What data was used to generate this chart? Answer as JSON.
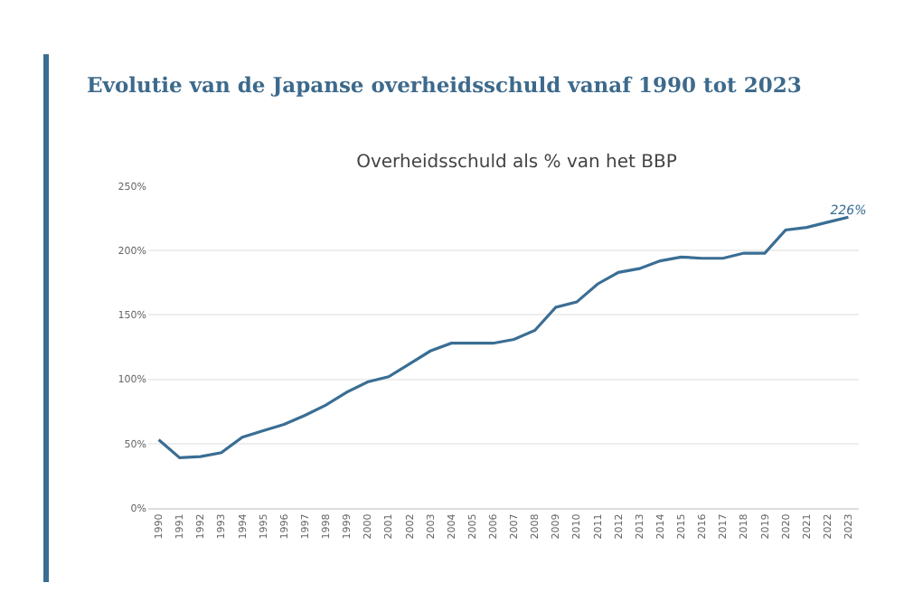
{
  "chart_data": {
    "type": "line",
    "title": "Evolutie van de Japanse overheidsschuld vanaf 1990 tot 2023",
    "subtitle": "Overheidsschuld als % van het BBP",
    "categories": [
      "1990",
      "1991",
      "1992",
      "1993",
      "1994",
      "1995",
      "1996",
      "1997",
      "1998",
      "1999",
      "2000",
      "2001",
      "2002",
      "2003",
      "2004",
      "2005",
      "2006",
      "2007",
      "2008",
      "2009",
      "2010",
      "2011",
      "2012",
      "2013",
      "2014",
      "2015",
      "2016",
      "2017",
      "2018",
      "2019",
      "2020",
      "2021",
      "2022",
      "2023"
    ],
    "series": [
      {
        "color": "#3a6e94",
        "values": [
          53,
          39,
          40,
          43,
          55,
          60,
          65,
          72,
          80,
          90,
          98,
          102,
          112,
          122,
          128,
          128,
          128,
          131,
          138,
          156,
          160,
          174,
          183,
          186,
          192,
          195,
          194,
          194,
          198,
          198,
          216,
          218,
          222,
          226
        ],
        "value_labels": [
          null,
          null,
          null,
          null,
          null,
          null,
          null,
          null,
          null,
          null,
          null,
          null,
          null,
          null,
          null,
          null,
          null,
          null,
          null,
          null,
          null,
          null,
          null,
          null,
          null,
          null,
          null,
          null,
          null,
          null,
          null,
          null,
          null,
          "226%"
        ]
      }
    ],
    "ylim": [
      0,
      250
    ],
    "yticks": [
      {
        "value": 0,
        "label": "0%"
      },
      {
        "value": 50,
        "label": "50%"
      },
      {
        "value": 100,
        "label": "100%"
      },
      {
        "value": 150,
        "label": "150%"
      },
      {
        "value": 200,
        "label": "200%"
      },
      {
        "value": 250,
        "label": "250%"
      }
    ],
    "grid": "y",
    "marker": "none",
    "line_style": "solid"
  }
}
